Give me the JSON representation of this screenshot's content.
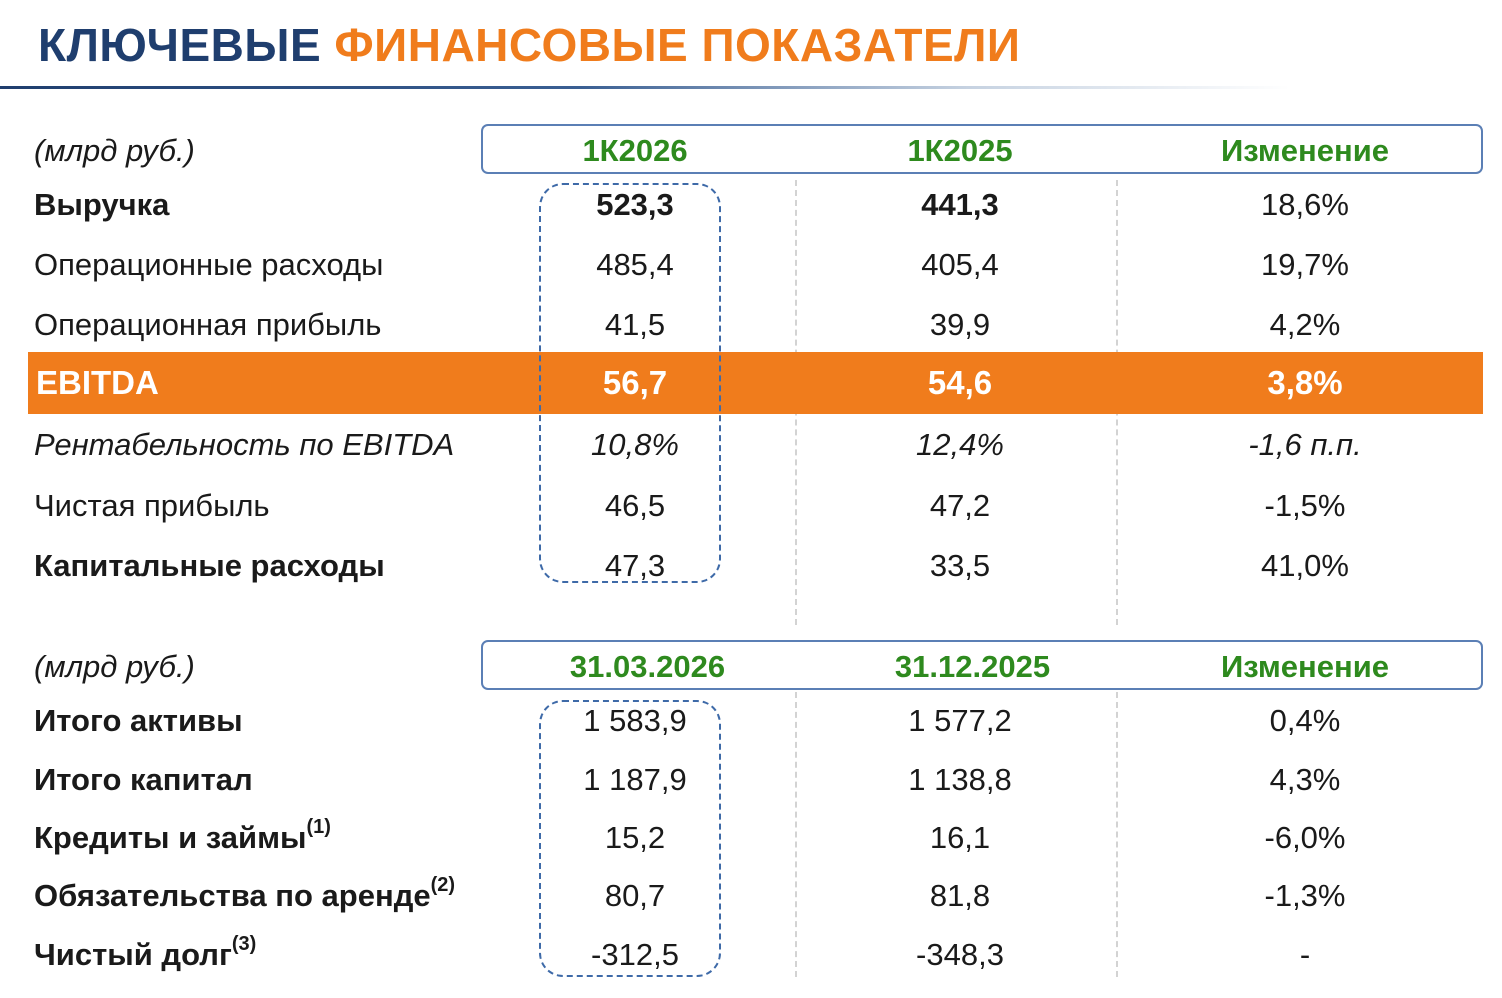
{
  "title": {
    "part1": "КЛЮЧЕВЫЕ",
    "part2": "ФИНАНСОВЫЕ ПОКАЗАТЕЛИ"
  },
  "colors": {
    "navy": "#1f3e6e",
    "orange": "#f07c1c",
    "green": "#2e8a1e",
    "box_border": "#5b7fb5"
  },
  "table1": {
    "unit": "(млрд руб.)",
    "headers": [
      "1К2026",
      "1К2025",
      "Изменение"
    ],
    "rows": [
      {
        "label": "Выручка",
        "v1": "523,3",
        "v2": "441,3",
        "chg": "18,6%"
      },
      {
        "label": "Операционные расходы",
        "v1": "485,4",
        "v2": "405,4",
        "chg": "19,7%"
      },
      {
        "label": "Операционная прибыль",
        "v1": "41,5",
        "v2": "39,9",
        "chg": "4,2%"
      },
      {
        "label": "EBITDA",
        "v1": "56,7",
        "v2": "54,6",
        "chg": "3,8%"
      },
      {
        "label": "Рентабельность по EBITDA",
        "v1": "10,8%",
        "v2": "12,4%",
        "chg": "-1,6 п.п."
      },
      {
        "label": "Чистая прибыль",
        "v1": "46,5",
        "v2": "47,2",
        "chg": "-1,5%"
      },
      {
        "label": "Капитальные расходы",
        "v1": "47,3",
        "v2": "33,5",
        "chg": "41,0%"
      }
    ]
  },
  "table2": {
    "unit": "(млрд руб.)",
    "headers": [
      "31.03.2026",
      "31.12.2025",
      "Изменение"
    ],
    "rows": [
      {
        "label": "Итого активы",
        "note": "",
        "v1": "1 583,9",
        "v2": "1 577,2",
        "chg": "0,4%"
      },
      {
        "label": "Итого капитал",
        "note": "",
        "v1": "1 187,9",
        "v2": "1 138,8",
        "chg": "4,3%"
      },
      {
        "label": "Кредиты и займы",
        "note": "(1)",
        "v1": "15,2",
        "v2": "16,1",
        "chg": "-6,0%"
      },
      {
        "label": "Обязательства по аренде",
        "note": "(2)",
        "v1": "80,7",
        "v2": "81,8",
        "chg": "-1,3%"
      },
      {
        "label": "Чистый долг",
        "note": "(3)",
        "v1": "-312,5",
        "v2": "-348,3",
        "chg": "-"
      }
    ]
  }
}
